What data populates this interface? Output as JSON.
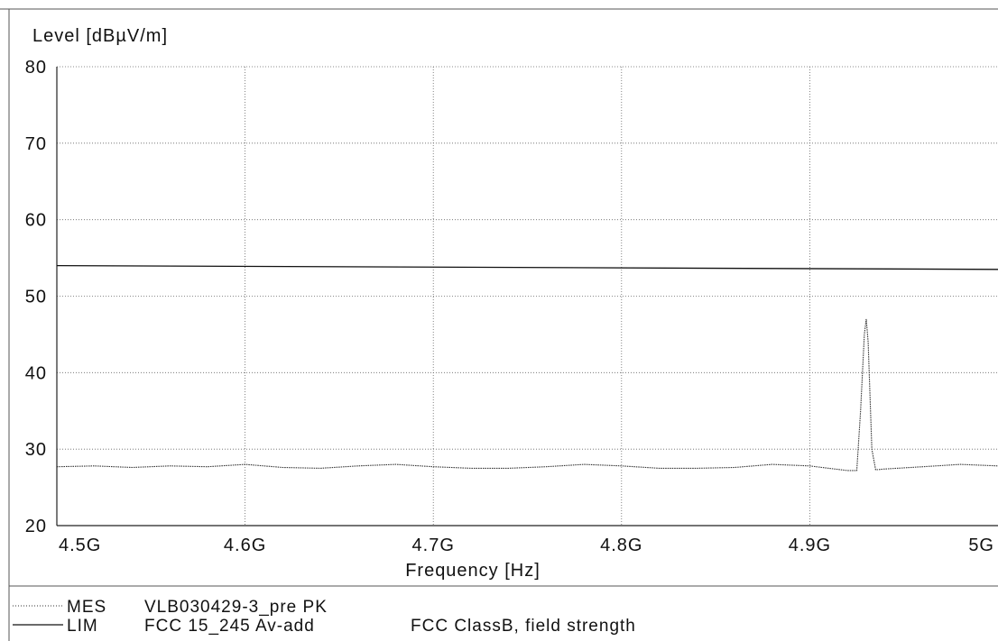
{
  "chart_data": {
    "type": "line",
    "ylabel": "Level [dBµV/m]",
    "xlabel": "Frequency [Hz]",
    "xlim": [
      4500000000,
      5000000000
    ],
    "ylim": [
      20,
      80
    ],
    "x_ticks": [
      4500000000,
      4600000000,
      4700000000,
      4800000000,
      4900000000,
      5000000000
    ],
    "x_tick_labels": [
      "4.5G",
      "4.6G",
      "4.7G",
      "4.8G",
      "4.9G",
      "5G"
    ],
    "y_ticks": [
      20,
      30,
      40,
      50,
      60,
      70,
      80
    ],
    "y_tick_labels": [
      "20",
      "30",
      "40",
      "50",
      "60",
      "70",
      "80"
    ],
    "grid": true,
    "series": [
      {
        "name": "VLB030429-3_pre PK",
        "style": "dotted",
        "color": "#333333",
        "x": [
          4500000000,
          4520000000,
          4540000000,
          4560000000,
          4580000000,
          4600000000,
          4620000000,
          4640000000,
          4660000000,
          4680000000,
          4700000000,
          4720000000,
          4740000000,
          4760000000,
          4780000000,
          4800000000,
          4820000000,
          4840000000,
          4860000000,
          4880000000,
          4900000000,
          4910000000,
          4920000000,
          4925000000,
          4927000000,
          4929000000,
          4930000000,
          4931000000,
          4933000000,
          4935000000,
          4940000000,
          4960000000,
          4980000000,
          5000000000
        ],
        "y": [
          27.7,
          27.8,
          27.6,
          27.8,
          27.7,
          28.0,
          27.6,
          27.5,
          27.8,
          28.0,
          27.7,
          27.5,
          27.5,
          27.7,
          28.0,
          27.8,
          27.5,
          27.5,
          27.6,
          28.0,
          27.8,
          27.5,
          27.2,
          27.2,
          35.0,
          45.0,
          47.0,
          44.0,
          30.0,
          27.3,
          27.4,
          27.7,
          28.0,
          27.8
        ]
      },
      {
        "name": "FCC 15_245 Av-add",
        "style": "solid",
        "color": "#111111",
        "x": [
          4500000000,
          5000000000
        ],
        "y": [
          54.0,
          53.5
        ]
      }
    ],
    "legend": {
      "placement": "bottom",
      "entries": [
        {
          "tag": "MES",
          "name": "VLB030429-3_pre PK",
          "note": ""
        },
        {
          "tag": "LIM",
          "name": "FCC 15_245 Av-add",
          "note": "FCC ClassB, field strength"
        }
      ]
    }
  }
}
